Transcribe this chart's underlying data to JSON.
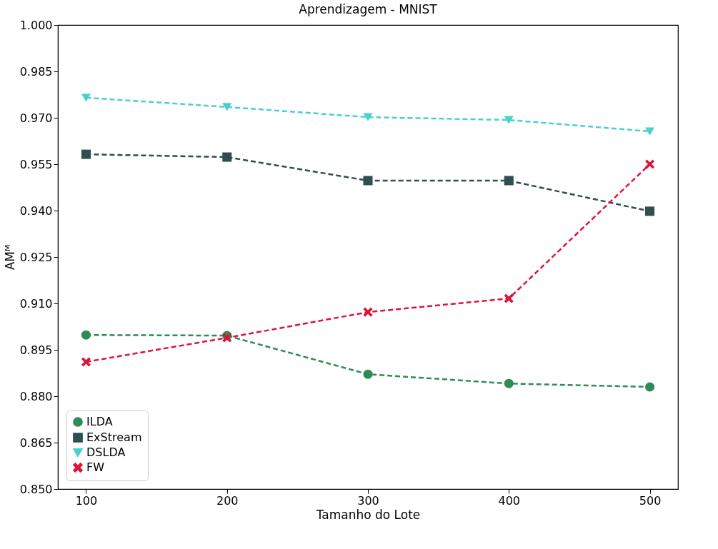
{
  "chart_data": {
    "type": "line",
    "title": "Aprendizagem - MNIST",
    "xlabel": "Tamanho do Lote",
    "ylabel": "AMᴹ",
    "x": [
      100,
      200,
      300,
      400,
      500
    ],
    "series": [
      {
        "name": "ILDA",
        "color": "#2e8b57",
        "marker": "circle",
        "values": [
          0.8998,
          0.8996,
          0.8871,
          0.8841,
          0.883
        ]
      },
      {
        "name": "ExStream",
        "color": "#2f4f4f",
        "marker": "square",
        "values": [
          0.9582,
          0.9573,
          0.9497,
          0.9497,
          0.9398
        ]
      },
      {
        "name": "DSLDA",
        "color": "#48d1cc",
        "marker": "triangle",
        "values": [
          0.9765,
          0.9735,
          0.9702,
          0.9693,
          0.9656
        ]
      },
      {
        "name": "FW",
        "color": "#dc143c",
        "marker": "cross",
        "values": [
          0.8911,
          0.8989,
          0.9072,
          0.9116,
          0.955
        ]
      }
    ],
    "xlim": [
      80,
      520
    ],
    "xticks": [
      100,
      200,
      300,
      400,
      500
    ],
    "ylim": [
      0.85,
      1.0
    ],
    "yticks": [
      {
        "value": 0.85,
        "label": "0.850"
      },
      0.865,
      {
        "value": 0.88,
        "label": "0.880"
      },
      0.895,
      {
        "value": 0.91,
        "label": "0.910"
      },
      0.925,
      {
        "value": 0.94,
        "label": "0.940"
      },
      0.955,
      {
        "value": 0.97,
        "label": "0.970"
      },
      0.985,
      {
        "value": 1.0,
        "label": "1.000"
      }
    ],
    "grid": false,
    "legend": "bottom left",
    "line_style": "dashed"
  }
}
